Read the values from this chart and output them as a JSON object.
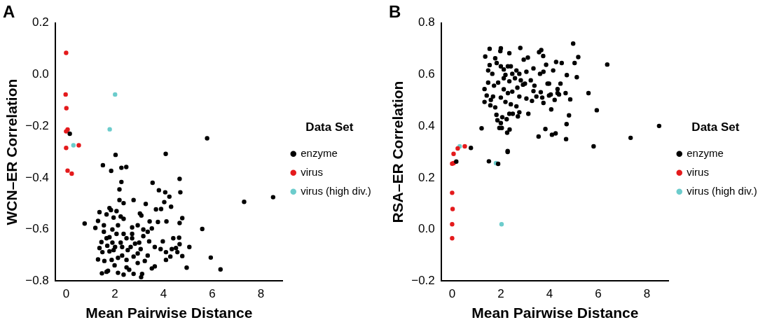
{
  "chart_data": [
    {
      "type": "scatter",
      "title": "A",
      "xlabel": "Mean Pairwise Distance",
      "ylabel": "WCN–ER Correlation",
      "legend_title": "Data Set",
      "legend": "right",
      "grid": false,
      "marker": "circle",
      "xlim": [
        -0.45,
        8.9
      ],
      "ylim": [
        -0.8,
        0.2
      ],
      "xticks": [
        0,
        2,
        4,
        6,
        8
      ],
      "yticks": [
        {
          "value": -0.8,
          "label": "−0.8"
        },
        {
          "value": -0.6,
          "label": "−0.6"
        },
        {
          "value": -0.4,
          "label": "−0.4"
        },
        {
          "value": -0.2,
          "label": "−0.2"
        },
        {
          "value": 0,
          "label": "0.0"
        },
        {
          "value": 0.2,
          "label": "0.2"
        }
      ],
      "series": [
        {
          "name": "enzyme",
          "color": "#000000",
          "x": [
            0.15,
            5.79,
            2.03,
            4.09,
            1.51,
            1.85,
            2.27,
            2.47,
            2.27,
            3.55,
            4.66,
            2.19,
            3.81,
            4.07,
            4.69,
            4.24,
            7.31,
            8.5,
            2.19,
            2.77,
            2.36,
            3.27,
            4.03,
            4.31,
            3.69,
            3.9,
            0.76,
            1.2,
            5.59,
            5.94,
            6.34,
            4.95,
            4.77,
            5.06,
            4.64,
            4.66,
            4.77,
            4.66,
            4.12,
            3.77,
            3.43,
            3.03,
            3.09,
            1.37,
            1.78,
            1.84,
            2.07,
            2.36,
            2.13,
            1.9,
            1.55,
            1.31,
            1.66,
            1.45,
            1.69,
            1.37,
            1.49,
            1.31,
            1.57,
            1.47,
            1.72,
            1.87,
            2.13,
            1.99,
            2.3,
            2.48,
            2.13,
            2.36,
            2.59,
            2.77,
            3.08,
            2.94,
            2.77,
            3.06,
            2.65,
            2.24,
            2.48,
            2.71,
            2.71,
            2.94,
            3.17,
            3.35,
            3.52,
            3.17,
            3.0,
            3.41,
            3.64,
            3.88,
            4.1,
            4.28,
            4.1,
            4.34,
            4.51,
            4.57,
            4.4,
            3.97,
            3.35,
            3.23,
            3.64,
            3.52,
            2.48,
            1.9,
            2.07,
            2.36,
            1.78,
            2.01,
            2.3,
            1.78,
            1.95,
            2.53,
            2.83,
            1.55,
            1.66,
            1.95,
            2.24,
            2.71,
            2.94,
            1.66,
            3.12
          ],
          "values": [
            -0.229,
            -0.247,
            -0.311,
            -0.307,
            -0.351,
            -0.373,
            -0.361,
            -0.358,
            -0.416,
            -0.419,
            -0.404,
            -0.445,
            -0.448,
            -0.456,
            -0.456,
            -0.473,
            -0.493,
            -0.475,
            -0.486,
            -0.486,
            -0.498,
            -0.501,
            -0.494,
            -0.512,
            -0.522,
            -0.521,
            -0.577,
            -0.594,
            -0.598,
            -0.709,
            -0.755,
            -0.748,
            -0.703,
            -0.668,
            -0.632,
            -0.657,
            -0.556,
            -0.575,
            -0.569,
            -0.571,
            -0.569,
            -0.538,
            -0.546,
            -0.533,
            -0.517,
            -0.525,
            -0.529,
            -0.559,
            -0.584,
            -0.6,
            -0.584,
            -0.567,
            -0.634,
            -0.649,
            -0.663,
            -0.672,
            -0.688,
            -0.716,
            -0.722,
            -0.77,
            -0.76,
            -0.718,
            -0.71,
            -0.739,
            -0.701,
            -0.718,
            -0.768,
            -0.775,
            -0.756,
            -0.772,
            -0.785,
            -0.73,
            -0.705,
            -0.676,
            -0.668,
            -0.651,
            -0.634,
            -0.617,
            -0.592,
            -0.584,
            -0.6,
            -0.609,
            -0.596,
            -0.626,
            -0.651,
            -0.646,
            -0.668,
            -0.676,
            -0.688,
            -0.705,
            -0.718,
            -0.676,
            -0.672,
            -0.688,
            -0.634,
            -0.646,
            -0.701,
            -0.722,
            -0.743,
            -0.751,
            -0.747,
            -0.651,
            -0.617,
            -0.617,
            -0.63,
            -0.668,
            -0.668,
            -0.685,
            -0.68,
            -0.68,
            -0.655,
            -0.609,
            -0.542,
            -0.554,
            -0.55,
            -0.634,
            -0.693,
            -0.764,
            -0.772
          ]
        },
        {
          "name": "virus",
          "color": "#e41a1c",
          "x": [
            0.0,
            -0.02,
            0.01,
            0.06,
            0.0,
            0.0,
            0.52,
            0.06,
            0.23
          ],
          "values": [
            0.084,
            -0.077,
            -0.13,
            -0.213,
            -0.22,
            -0.284,
            -0.274,
            -0.372,
            -0.384
          ]
        },
        {
          "name": "virus (high div.)",
          "color": "#6ccccc",
          "x": [
            2.01,
            1.79,
            0.3
          ],
          "values": [
            -0.077,
            -0.212,
            -0.274
          ]
        }
      ]
    },
    {
      "type": "scatter",
      "title": "B",
      "xlabel": "Mean Pairwise Distance",
      "ylabel": "RSA–ER Correlation",
      "legend_title": "Data Set",
      "legend": "right",
      "grid": false,
      "marker": "circle",
      "xlim": [
        -0.45,
        8.9
      ],
      "ylim": [
        -0.2,
        0.8
      ],
      "xticks": [
        0,
        2,
        4,
        6,
        8
      ],
      "yticks": [
        {
          "value": -0.2,
          "label": "−0.2"
        },
        {
          "value": 0,
          "label": "0.0"
        },
        {
          "value": 0.2,
          "label": "0.2"
        },
        {
          "value": 0.4,
          "label": "0.4"
        },
        {
          "value": 0.6,
          "label": "0.6"
        },
        {
          "value": 0.8,
          "label": "0.8"
        }
      ],
      "series": [
        {
          "name": "enzyme",
          "color": "#000000",
          "x": [
            0.17,
            0.77,
            1.51,
            1.89,
            2.28,
            2.28,
            1.21,
            1.94,
            2.04,
            2.26,
            2.36,
            3.55,
            3.83,
            4.1,
            4.25,
            4.68,
            4.7,
            4.8,
            5.81,
            7.33,
            8.5,
            5.94,
            5.6,
            6.37,
            4.97,
            5.18,
            5.12,
            5.03,
            4.71,
            4.85,
            4.66,
            4.5,
            4.27,
            4.15,
            4.33,
            4.07,
            3.75,
            3.98,
            3.92,
            3.66,
            3.57,
            3.74,
            3.86,
            3.75,
            3.61,
            3.34,
            3.11,
            2.94,
            2.8,
            2.35,
            2.0,
            1.98,
            1.54,
            1.36,
            1.77,
            1.54,
            1.48,
            1.65,
            1.83,
            2.0,
            2.12,
            2.29,
            2.47,
            2.64,
            2.76,
            2.58,
            2.35,
            2.12,
            1.89,
            1.72,
            1.48,
            1.33,
            1.42,
            1.33,
            1.59,
            1.77,
            1.82,
            1.86,
            2.06,
            2.24,
            2.35,
            2.49,
            2.7,
            2.76,
            2.64,
            2.41,
            2.19,
            2.0,
            2.12,
            2.29,
            2.47,
            2.76,
            2.68,
            2.91,
            3.05,
            3.13,
            3.28,
            3.34,
            3.38,
            3.46,
            3.64,
            3.7,
            3.98,
            4.05,
            4.33,
            4.39,
            4.21,
            4.45,
            3.23,
            3.05,
            2.82,
            2.99,
            2.41,
            2.19,
            1.68,
            1.57,
            2.0
          ],
          "values": [
            0.263,
            0.316,
            0.264,
            0.254,
            0.304,
            0.3,
            0.392,
            0.393,
            0.393,
            0.375,
            0.387,
            0.36,
            0.389,
            0.367,
            0.372,
            0.35,
            0.408,
            0.442,
            0.322,
            0.355,
            0.401,
            0.462,
            0.528,
            0.639,
            0.72,
            0.668,
            0.59,
            0.645,
            0.598,
            0.504,
            0.528,
            0.645,
            0.649,
            0.616,
            0.544,
            0.465,
            0.49,
            0.519,
            0.565,
            0.695,
            0.687,
            0.672,
            0.638,
            0.611,
            0.603,
            0.624,
            0.666,
            0.658,
            0.703,
            0.683,
            0.702,
            0.691,
            0.7,
            0.67,
            0.663,
            0.637,
            0.616,
            0.603,
            0.645,
            0.632,
            0.62,
            0.632,
            0.603,
            0.616,
            0.603,
            0.586,
            0.574,
            0.586,
            0.569,
            0.557,
            0.569,
            0.544,
            0.519,
            0.494,
            0.502,
            0.473,
            0.444,
            0.423,
            0.435,
            0.427,
            0.448,
            0.448,
            0.438,
            0.454,
            0.477,
            0.485,
            0.494,
            0.511,
            0.543,
            0.528,
            0.534,
            0.515,
            0.549,
            0.561,
            0.507,
            0.448,
            0.498,
            0.536,
            0.557,
            0.515,
            0.532,
            0.511,
            0.565,
            0.523,
            0.528,
            0.523,
            0.502,
            0.565,
            0.578,
            0.611,
            0.578,
            0.565,
            0.632,
            0.599,
            0.515,
            0.481,
            0.412
          ]
        },
        {
          "name": "virus",
          "color": "#e41a1c",
          "x": [
            0.0,
            0.0,
            0.02,
            0.0,
            0.0,
            0.06,
            0.06,
            0.23,
            0.52
          ],
          "values": [
            -0.034,
            0.02,
            0.079,
            0.142,
            0.255,
            0.257,
            0.293,
            0.314,
            0.322
          ]
        },
        {
          "name": "virus (high div.)",
          "color": "#6ccccc",
          "x": [
            0.31,
            1.8,
            2.03
          ],
          "values": [
            0.322,
            0.257,
            0.02
          ]
        }
      ]
    }
  ]
}
